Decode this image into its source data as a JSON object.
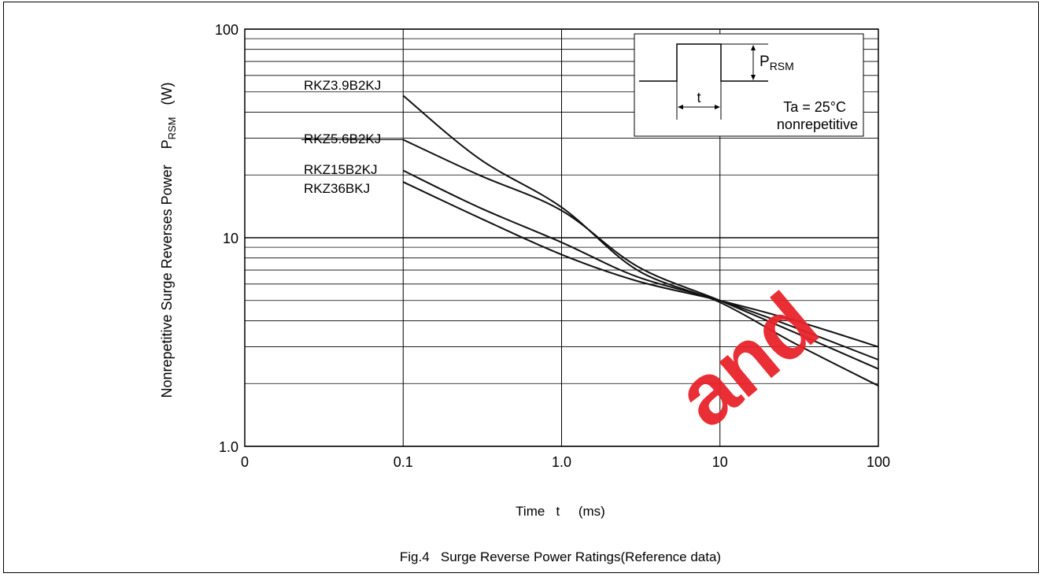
{
  "chart_data": {
    "type": "line",
    "title": "",
    "caption": "Fig.4   Surge Reverse Power Ratings(Reference data)",
    "xlabel": "Time   t     (ms)",
    "ylabel": "Nonrepetitive Surge Reverses Power    P",
    "ylabel_sub": "RSM",
    "ylabel_unit": "(W)",
    "x_scale": "log",
    "y_scale": "log",
    "xlim": [
      0.01,
      100
    ],
    "ylim": [
      1,
      100
    ],
    "x_ticks": [
      {
        "value": 0.01,
        "label": "0"
      },
      {
        "value": 0.1,
        "label": "0.1"
      },
      {
        "value": 1,
        "label": "1.0"
      },
      {
        "value": 10,
        "label": "10"
      },
      {
        "value": 100,
        "label": "100"
      }
    ],
    "y_ticks": [
      {
        "value": 1,
        "label": "1.0"
      },
      {
        "value": 10,
        "label": "10"
      },
      {
        "value": 100,
        "label": "100"
      }
    ],
    "grid": true,
    "series": [
      {
        "name": "RKZ3.9B2KJ",
        "x": [
          0.1,
          0.3,
          1.0,
          3.0,
          10,
          30,
          100
        ],
        "y": [
          48,
          24,
          14,
          7,
          4.9,
          3.1,
          1.95
        ]
      },
      {
        "name": "RKZ5.6B2KJ",
        "x": [
          0.1,
          0.3,
          1.0,
          3.0,
          10,
          30,
          100
        ],
        "y": [
          29.5,
          20,
          13.5,
          7.3,
          5,
          3.5,
          2.35
        ]
      },
      {
        "name": "RKZ15B2KJ",
        "x": [
          0.1,
          0.3,
          1.0,
          3.0,
          10,
          30,
          100
        ],
        "y": [
          21,
          14,
          9.5,
          6.5,
          5,
          3.7,
          2.6
        ]
      },
      {
        "name": "RKZ36BKJ",
        "x": [
          0.1,
          0.3,
          1.0,
          3.0,
          10,
          30,
          100
        ],
        "y": [
          18.5,
          12.5,
          8.3,
          6.2,
          5,
          4,
          3
        ]
      }
    ],
    "inset": {
      "label_main": "P",
      "label_sub": "RSM",
      "pulse_label": "t",
      "condition_1": "Ta = 25°C",
      "condition_2": "nonrepetitive"
    }
  },
  "watermark": "and"
}
